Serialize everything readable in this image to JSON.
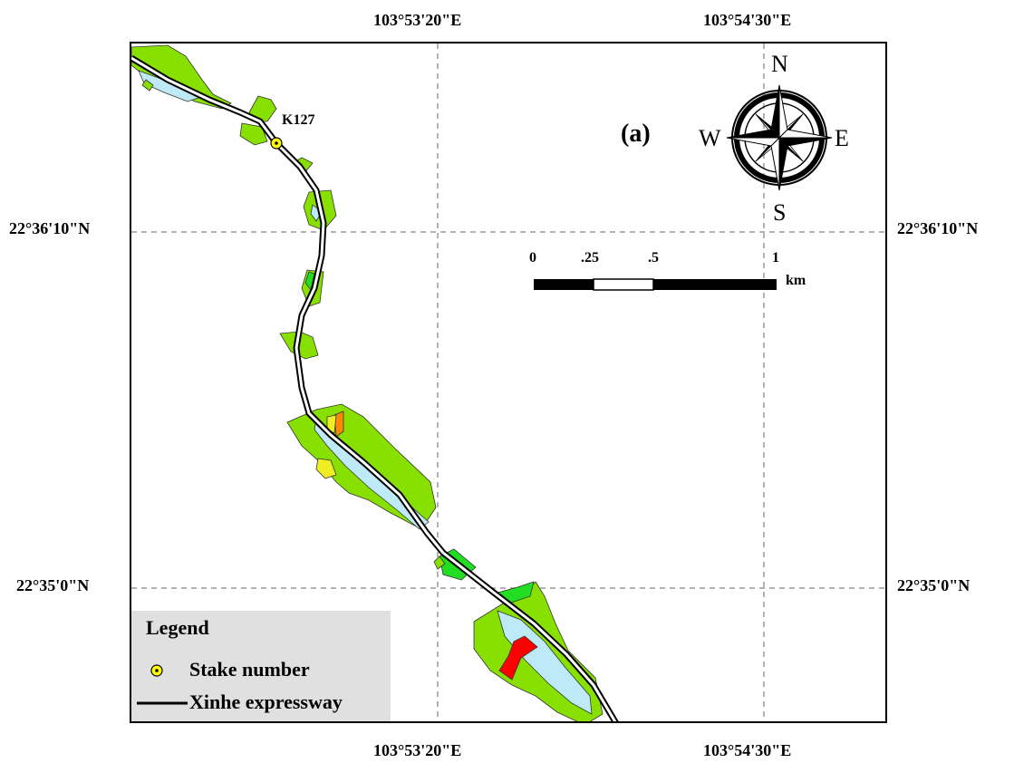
{
  "coords": {
    "top_left": "103°53'20\"E",
    "top_right": "103°54'30\"E",
    "bottom_left": "103°53'20\"E",
    "bottom_right": "103°54'30\"E",
    "left_upper": "22°36'10\"N",
    "left_lower": "22°35'0\"N",
    "right_upper": "22°36'10\"N",
    "right_lower": "22°35'0\"N"
  },
  "map": {
    "panel_label": "(a)",
    "stake_label": "K127",
    "colors": {
      "green_light": "#88e000",
      "green_bright": "#22dd22",
      "water": "#bdeaf6",
      "yellow": "#eeee22",
      "orange": "#ff8800",
      "red": "#ff0000",
      "road": "#000000",
      "grid": "#999999",
      "legend_bg": "#e0e0e0"
    }
  },
  "scale_bar": {
    "labels": [
      "0",
      ".25",
      ".5",
      "1"
    ],
    "unit": "km"
  },
  "compass": {
    "n": "N",
    "s": "S",
    "e": "E",
    "w": "W"
  },
  "legend": {
    "title": "Legend",
    "stake_label": "Stake number",
    "road_label": "Xinhe expressway",
    "stake_icon": "yellow-dot-icon",
    "road_icon": "line-icon"
  }
}
